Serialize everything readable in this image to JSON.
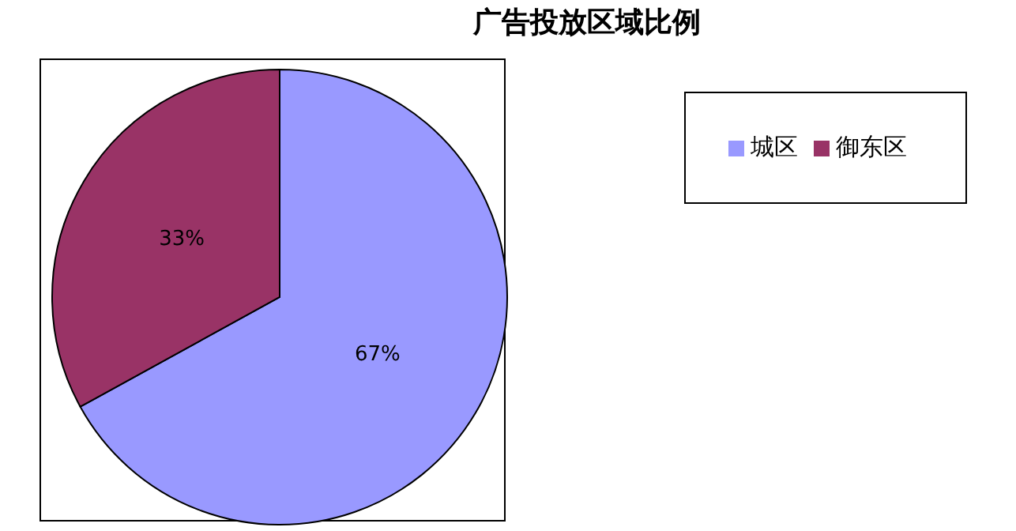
{
  "chart_data": {
    "type": "pie",
    "title": "广告投放区域比例",
    "categories": [
      "城区",
      "御东区"
    ],
    "values": [
      67,
      33
    ],
    "colors": [
      "#9999ff",
      "#993366"
    ],
    "value_labels": [
      "67%",
      "33%"
    ],
    "legend": "right"
  }
}
